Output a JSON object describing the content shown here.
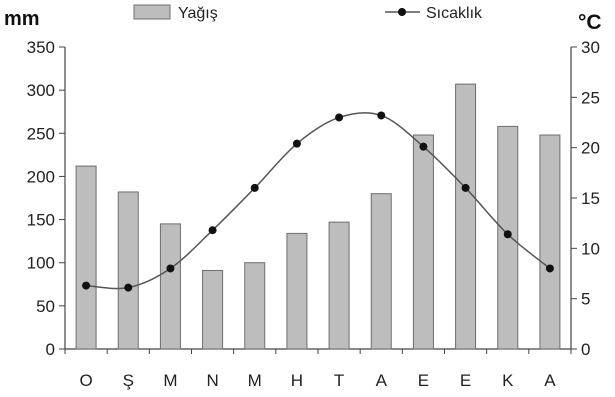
{
  "chart_data": {
    "type": "bar",
    "categories": [
      "O",
      "Ş",
      "M",
      "N",
      "M",
      "H",
      "T",
      "A",
      "E",
      "E",
      "K",
      "A"
    ],
    "series": [
      {
        "name": "Yağış",
        "type": "bar",
        "axis": "left",
        "values": [
          212,
          182,
          145,
          91,
          100,
          134,
          147,
          180,
          248,
          307,
          258,
          248
        ]
      },
      {
        "name": "Sıcaklık",
        "type": "line",
        "axis": "right",
        "values": [
          6.3,
          6.1,
          8.0,
          11.8,
          16.0,
          20.4,
          23.0,
          23.2,
          20.1,
          16.0,
          11.4,
          8.0
        ]
      }
    ],
    "left_axis": {
      "label": "mm",
      "ylim": [
        0,
        350
      ],
      "ticks": [
        "0",
        "50",
        "100",
        "150",
        "200",
        "250",
        "300",
        "350"
      ]
    },
    "right_axis": {
      "label": "°C",
      "ylim": [
        0,
        30
      ],
      "ticks": [
        "0",
        "5",
        "10",
        "15",
        "20",
        "25",
        "30"
      ]
    },
    "grid": false,
    "legend_position": "top",
    "bar_color": "#bdbdbd",
    "bar_edge_color": "#6e6e6e",
    "line_color": "#555555",
    "marker_color": "#111111"
  }
}
